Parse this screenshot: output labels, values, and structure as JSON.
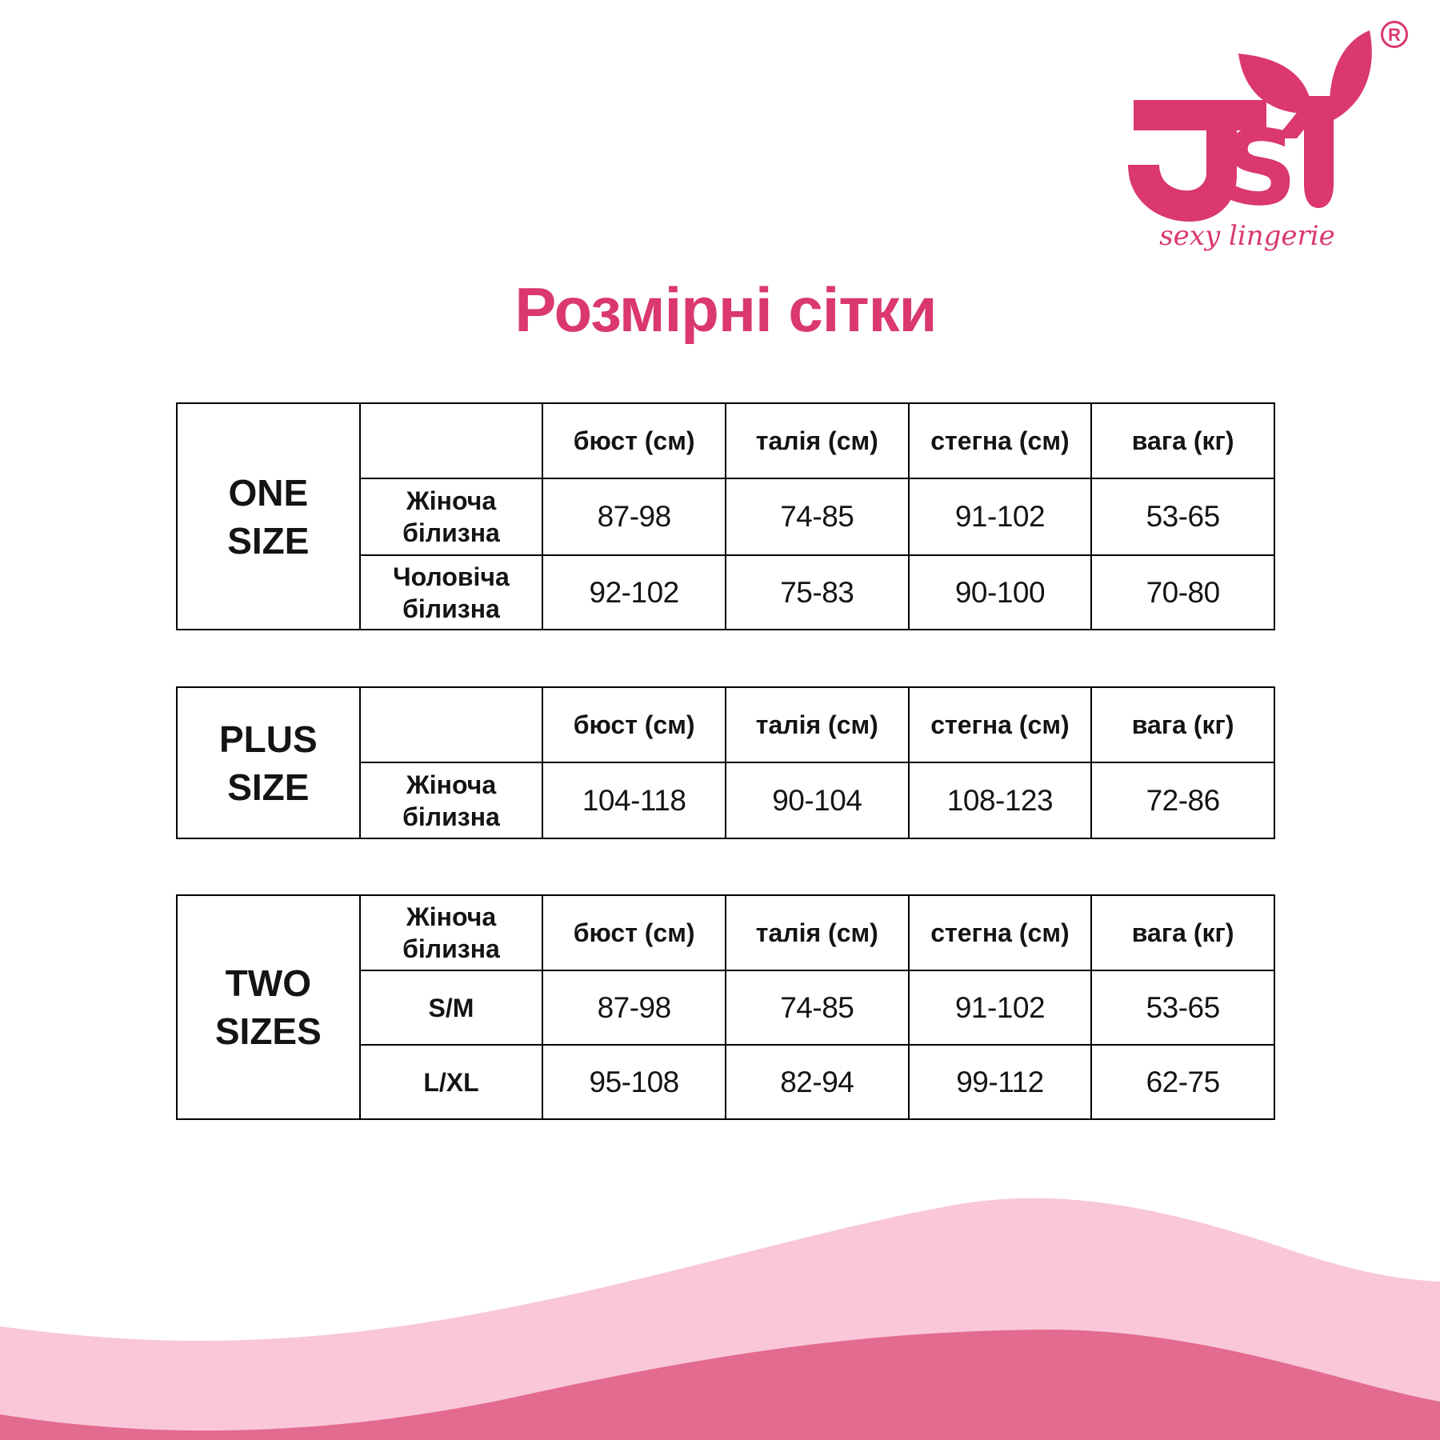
{
  "page": {
    "title": "Розмірні сітки"
  },
  "brand": {
    "logo_text": "JSY",
    "tagline": "sexy lingerie",
    "registered_mark": "R"
  },
  "colors": {
    "brand_pink": "#DA386F",
    "wave_light": "#F9C6DA",
    "wave_dark": "#E26B8F",
    "table_border": "#000000",
    "text": "#141414"
  },
  "tables": [
    {
      "size_label": "ONE SIZE",
      "size_label_lines": "ONE\nSIZE",
      "header_row_label": "",
      "columns": [
        "бюст (см)",
        "талія (см)",
        "стегна (см)",
        "вага (кг)"
      ],
      "rows": [
        {
          "label": "Жіноча білизна",
          "values": [
            "87-98",
            "74-85",
            "91-102",
            "53-65"
          ]
        },
        {
          "label": "Чоловіча білизна",
          "values": [
            "92-102",
            "75-83",
            "90-100",
            "70-80"
          ]
        }
      ]
    },
    {
      "size_label": "PLUS SIZE",
      "size_label_lines": "PLUS\nSIZE",
      "header_row_label": "",
      "columns": [
        "бюст (см)",
        "талія (см)",
        "стегна (см)",
        "вага (кг)"
      ],
      "rows": [
        {
          "label": "Жіноча білизна",
          "values": [
            "104-118",
            "90-104",
            "108-123",
            "72-86"
          ]
        }
      ]
    },
    {
      "size_label": "TWO SIZES",
      "size_label_lines": "TWO\nSIZES",
      "header_row_label": "Жіноча білизна",
      "columns": [
        "бюст (см)",
        "талія (см)",
        "стегна (см)",
        "вага (кг)"
      ],
      "rows": [
        {
          "label": "S/M",
          "values": [
            "87-98",
            "74-85",
            "91-102",
            "53-65"
          ]
        },
        {
          "label": "L/XL",
          "values": [
            "95-108",
            "82-94",
            "99-112",
            "62-75"
          ]
        }
      ]
    }
  ]
}
